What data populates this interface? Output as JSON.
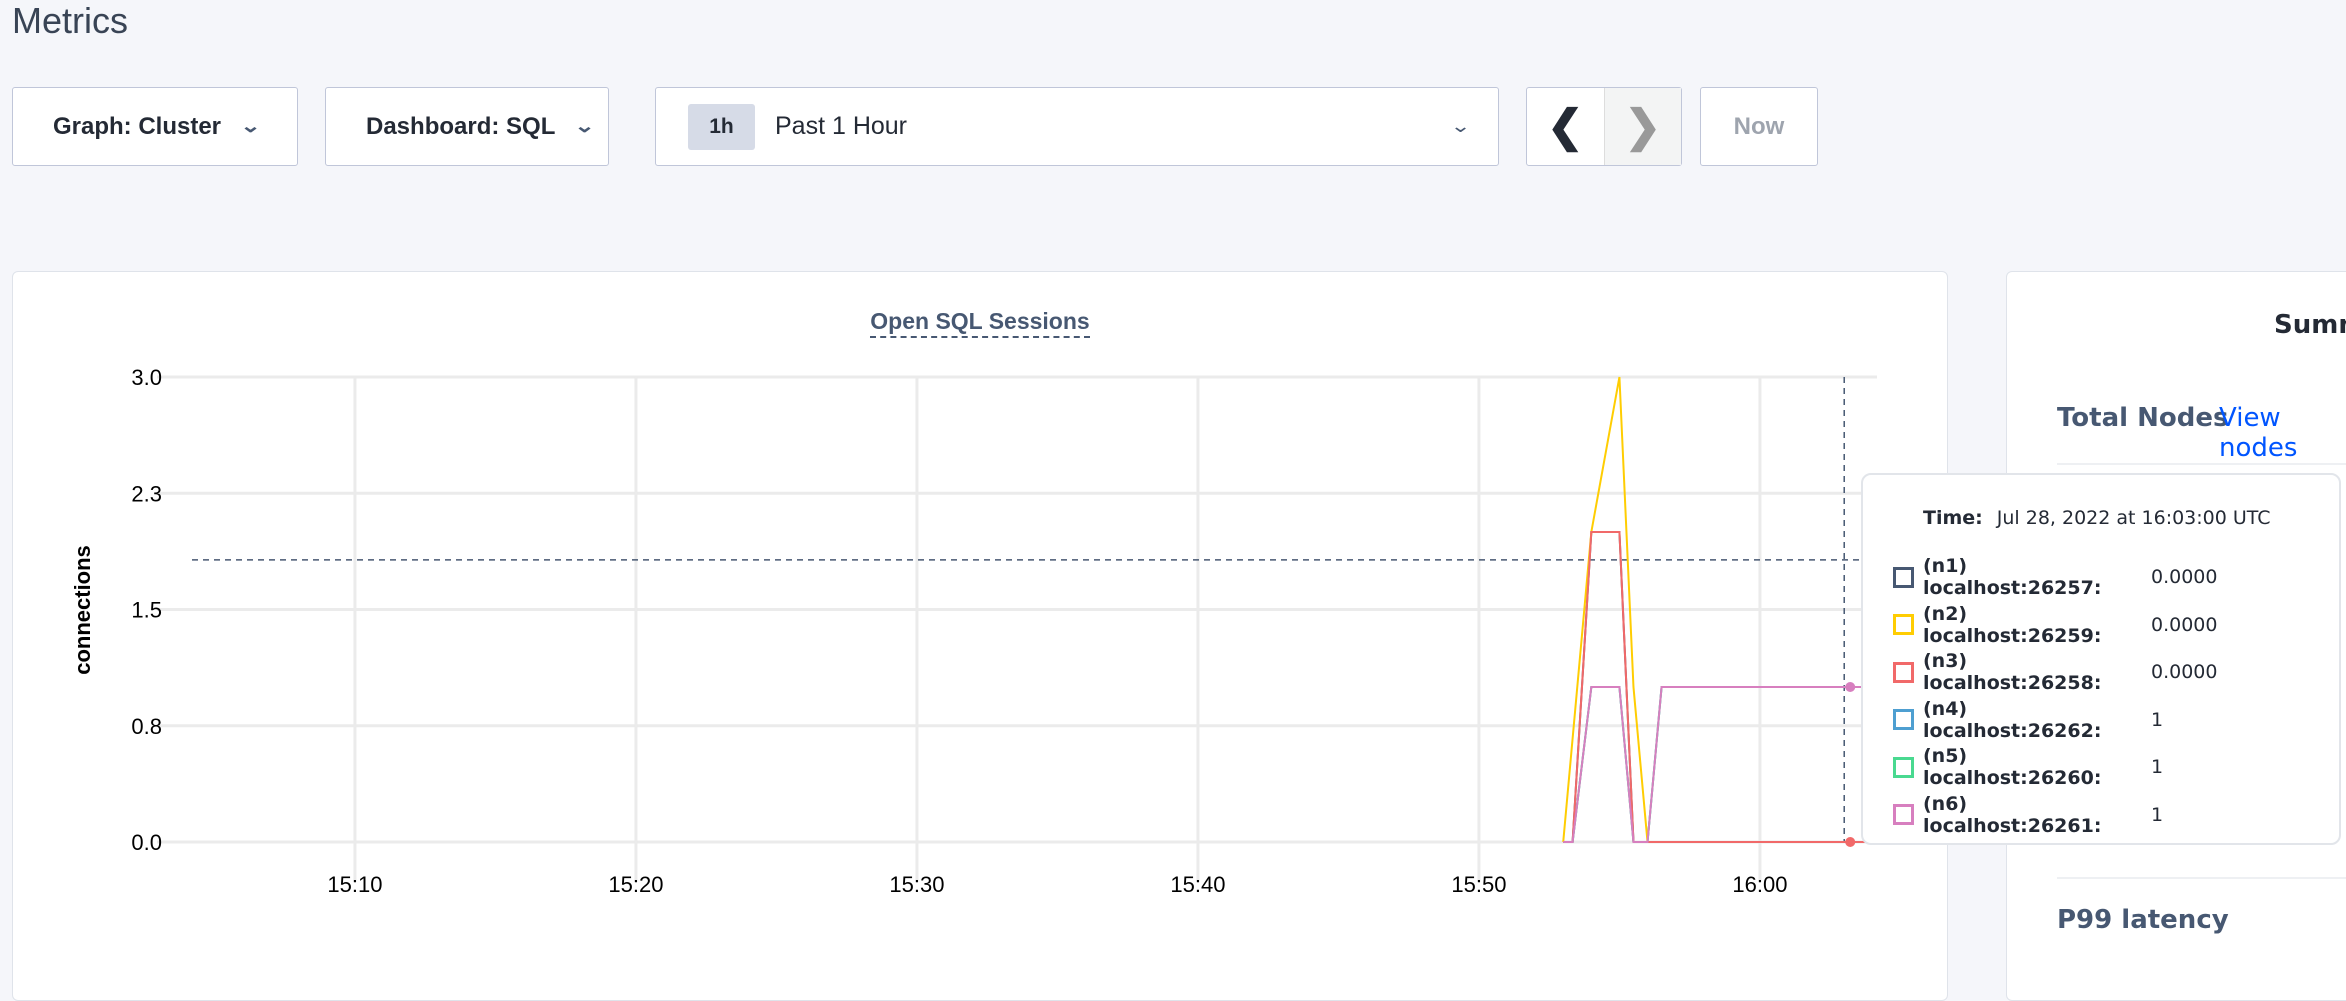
{
  "page_title": "Metrics",
  "toolbar": {
    "graph_label": "Graph: Cluster",
    "dashboard_label": "Dashboard: SQL",
    "range_badge": "1h",
    "range_label": "Past 1 Hour",
    "prev_icon": "chevron-left-icon",
    "next_icon": "chevron-right-icon",
    "now_label": "Now"
  },
  "summary": {
    "title": "Summ",
    "total_nodes_label": "Total Nodes",
    "view_nodes_link": "View nodes",
    "p99_label": "P99 latency"
  },
  "tooltip": {
    "time_label": "Time:",
    "time_value": "Jul 28, 2022 at 16:03:00 UTC",
    "rows": [
      {
        "name": "(n1) localhost:26257:",
        "value": "0.0000",
        "color": "#475872"
      },
      {
        "name": "(n2) localhost:26259:",
        "value": "0.0000",
        "color": "#ffcd02"
      },
      {
        "name": "(n3) localhost:26258:",
        "value": "0.0000",
        "color": "#f16969"
      },
      {
        "name": "(n4) localhost:26262:",
        "value": "1",
        "color": "#4e9fd1"
      },
      {
        "name": "(n5) localhost:26260:",
        "value": "1",
        "color": "#49d990"
      },
      {
        "name": "(n6) localhost:26261:",
        "value": "1",
        "color": "#d77fbf"
      }
    ]
  },
  "chart_data": {
    "type": "line",
    "title": "Open SQL Sessions",
    "xlabel": "",
    "ylabel": "connections",
    "xlim": [
      "15:03:40",
      "16:04:10"
    ],
    "ylim": [
      0,
      3
    ],
    "x_ticks": [
      "15:10",
      "15:20",
      "15:30",
      "15:40",
      "15:50",
      "16:00"
    ],
    "y_ticks": [
      "0.0",
      "0.8",
      "1.5",
      "2.3",
      "3.0"
    ],
    "y_tick_values": [
      0,
      0.75,
      1.5,
      2.25,
      3
    ],
    "grid": true,
    "hover_time": "16:03:00",
    "hover_y": 1.82,
    "series": [
      {
        "name": "(n1) localhost:26257",
        "color": "#475872",
        "points": [
          [
            "15:53:00",
            0
          ],
          [
            "15:53:20",
            0
          ],
          [
            "15:54:00",
            2
          ],
          [
            "15:55:00",
            2
          ],
          [
            "15:55:30",
            0
          ],
          [
            "16:03:00",
            0
          ],
          [
            "16:04:10",
            0
          ]
        ]
      },
      {
        "name": "(n4) localhost:26262",
        "color": "#4e9fd1",
        "points": [
          [
            "15:53:00",
            0
          ],
          [
            "15:53:20",
            0
          ],
          [
            "15:54:00",
            1
          ],
          [
            "15:55:00",
            1
          ],
          [
            "15:55:30",
            0
          ],
          [
            "15:56:00",
            0
          ],
          [
            "15:56:30",
            1
          ],
          [
            "16:03:00",
            1
          ],
          [
            "16:04:10",
            1
          ]
        ]
      },
      {
        "name": "(n5) localhost:26260",
        "color": "#49d990",
        "points": [
          [
            "15:53:00",
            0
          ],
          [
            "15:53:20",
            0
          ],
          [
            "15:54:00",
            1
          ],
          [
            "15:55:00",
            1
          ],
          [
            "15:55:30",
            0
          ],
          [
            "15:56:00",
            0
          ],
          [
            "15:56:30",
            1
          ],
          [
            "16:03:00",
            1
          ],
          [
            "16:04:10",
            1
          ]
        ]
      },
      {
        "name": "(n2) localhost:26259",
        "color": "#ffcd02",
        "points": [
          [
            "15:53:00",
            0
          ],
          [
            "15:54:00",
            2
          ],
          [
            "15:55:00",
            3
          ],
          [
            "15:55:30",
            1
          ],
          [
            "15:56:00",
            0
          ],
          [
            "16:03:00",
            0
          ],
          [
            "16:04:10",
            0
          ]
        ]
      },
      {
        "name": "(n3) localhost:26258",
        "color": "#f16969",
        "points": [
          [
            "15:53:00",
            0
          ],
          [
            "15:53:20",
            0
          ],
          [
            "15:54:00",
            2
          ],
          [
            "15:55:00",
            2
          ],
          [
            "15:55:30",
            0
          ],
          [
            "16:03:00",
            0
          ],
          [
            "16:04:10",
            0
          ]
        ]
      },
      {
        "name": "(n6) localhost:26261",
        "color": "#d77fbf",
        "points": [
          [
            "15:53:00",
            0
          ],
          [
            "15:53:20",
            0
          ],
          [
            "15:54:00",
            1
          ],
          [
            "15:55:00",
            1
          ],
          [
            "15:55:30",
            0
          ],
          [
            "15:56:00",
            0
          ],
          [
            "15:56:30",
            1
          ],
          [
            "16:03:00",
            1
          ],
          [
            "16:04:10",
            1
          ]
        ]
      }
    ]
  }
}
